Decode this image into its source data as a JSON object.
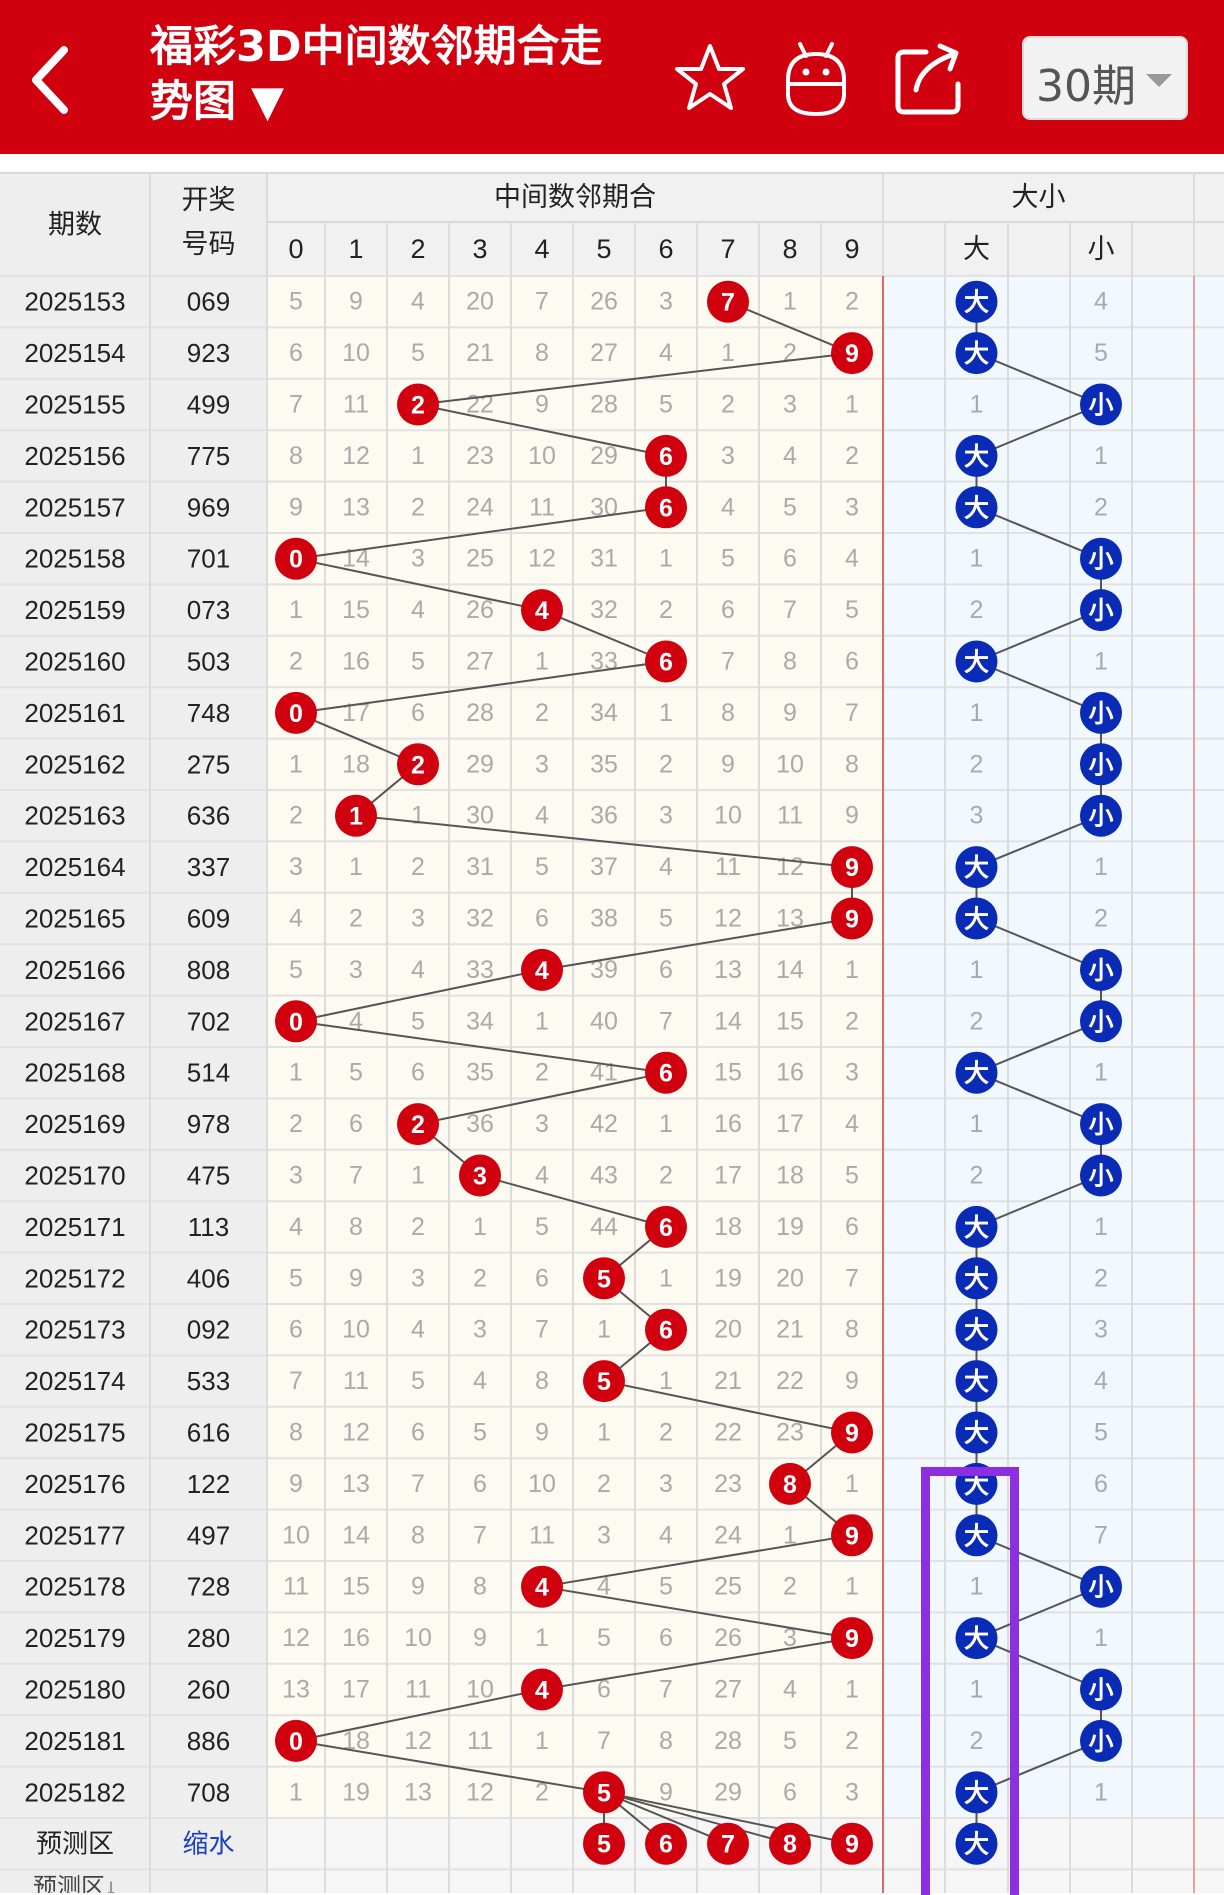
{
  "header": {
    "back_icon": "back-arrow-icon",
    "title_line1": "福彩3D中间数邻期合走",
    "title_line2": "势图 ▼",
    "favorite_icon": "star-icon",
    "robot_icon": "robot-icon",
    "share_icon": "share-icon",
    "period_label": "30期",
    "colors": {
      "bar": "#d0000f",
      "ball_red": "#d0000f",
      "ball_blue": "#0a2bb5",
      "highlight": "#8d2ee0"
    }
  },
  "table": {
    "col_period": "期数",
    "col_draw_line1": "开奖",
    "col_draw_line2": "号码",
    "group_sum": "中间数邻期合",
    "group_size": "大小",
    "digits": [
      "0",
      "1",
      "2",
      "3",
      "4",
      "5",
      "6",
      "7",
      "8",
      "9"
    ],
    "size_big": "大",
    "size_small": "小",
    "rows": [
      {
        "period": "2025153",
        "draw": "069",
        "cells": [
          "5",
          "9",
          "4",
          "20",
          "7",
          "26",
          "3",
          "7",
          "1",
          "2"
        ],
        "hit": 7,
        "size": "大",
        "big": "大",
        "small": "4"
      },
      {
        "period": "2025154",
        "draw": "923",
        "cells": [
          "6",
          "10",
          "5",
          "21",
          "8",
          "27",
          "4",
          "1",
          "2",
          "9"
        ],
        "hit": 9,
        "size": "大",
        "big": "大",
        "small": "5"
      },
      {
        "period": "2025155",
        "draw": "499",
        "cells": [
          "7",
          "11",
          "2",
          "22",
          "9",
          "28",
          "5",
          "2",
          "3",
          "1"
        ],
        "hit": 2,
        "size": "小",
        "big": "1",
        "small": "小"
      },
      {
        "period": "2025156",
        "draw": "775",
        "cells": [
          "8",
          "12",
          "1",
          "23",
          "10",
          "29",
          "6",
          "3",
          "4",
          "2"
        ],
        "hit": 6,
        "size": "大",
        "big": "大",
        "small": "1"
      },
      {
        "period": "2025157",
        "draw": "969",
        "cells": [
          "9",
          "13",
          "2",
          "24",
          "11",
          "30",
          "6",
          "4",
          "5",
          "3"
        ],
        "hit": 6,
        "size": "大",
        "big": "大",
        "small": "2"
      },
      {
        "period": "2025158",
        "draw": "701",
        "cells": [
          "0",
          "14",
          "3",
          "25",
          "12",
          "31",
          "1",
          "5",
          "6",
          "4"
        ],
        "hit": 0,
        "size": "小",
        "big": "1",
        "small": "小"
      },
      {
        "period": "2025159",
        "draw": "073",
        "cells": [
          "1",
          "15",
          "4",
          "26",
          "4",
          "32",
          "2",
          "6",
          "7",
          "5"
        ],
        "hit": 4,
        "size": "小",
        "big": "2",
        "small": "小"
      },
      {
        "period": "2025160",
        "draw": "503",
        "cells": [
          "2",
          "16",
          "5",
          "27",
          "1",
          "33",
          "6",
          "7",
          "8",
          "6"
        ],
        "hit": 6,
        "size": "大",
        "big": "大",
        "small": "1"
      },
      {
        "period": "2025161",
        "draw": "748",
        "cells": [
          "0",
          "17",
          "6",
          "28",
          "2",
          "34",
          "1",
          "8",
          "9",
          "7"
        ],
        "hit": 0,
        "size": "小",
        "big": "1",
        "small": "小"
      },
      {
        "period": "2025162",
        "draw": "275",
        "cells": [
          "1",
          "18",
          "2",
          "29",
          "3",
          "35",
          "2",
          "9",
          "10",
          "8"
        ],
        "hit": 2,
        "size": "小",
        "big": "2",
        "small": "小"
      },
      {
        "period": "2025163",
        "draw": "636",
        "cells": [
          "2",
          "1",
          "1",
          "30",
          "4",
          "36",
          "3",
          "10",
          "11",
          "9"
        ],
        "hit": 1,
        "size": "小",
        "big": "3",
        "small": "小"
      },
      {
        "period": "2025164",
        "draw": "337",
        "cells": [
          "3",
          "1",
          "2",
          "31",
          "5",
          "37",
          "4",
          "11",
          "12",
          "9"
        ],
        "hit": 9,
        "size": "大",
        "big": "大",
        "small": "1"
      },
      {
        "period": "2025165",
        "draw": "609",
        "cells": [
          "4",
          "2",
          "3",
          "32",
          "6",
          "38",
          "5",
          "12",
          "13",
          "9"
        ],
        "hit": 9,
        "size": "大",
        "big": "大",
        "small": "2"
      },
      {
        "period": "2025166",
        "draw": "808",
        "cells": [
          "5",
          "3",
          "4",
          "33",
          "4",
          "39",
          "6",
          "13",
          "14",
          "1"
        ],
        "hit": 4,
        "size": "小",
        "big": "1",
        "small": "小"
      },
      {
        "period": "2025167",
        "draw": "702",
        "cells": [
          "0",
          "4",
          "5",
          "34",
          "1",
          "40",
          "7",
          "14",
          "15",
          "2"
        ],
        "hit": 0,
        "size": "小",
        "big": "2",
        "small": "小"
      },
      {
        "period": "2025168",
        "draw": "514",
        "cells": [
          "1",
          "5",
          "6",
          "35",
          "2",
          "41",
          "6",
          "15",
          "16",
          "3"
        ],
        "hit": 6,
        "size": "大",
        "big": "大",
        "small": "1"
      },
      {
        "period": "2025169",
        "draw": "978",
        "cells": [
          "2",
          "6",
          "2",
          "36",
          "3",
          "42",
          "1",
          "16",
          "17",
          "4"
        ],
        "hit": 2,
        "size": "小",
        "big": "1",
        "small": "小"
      },
      {
        "period": "2025170",
        "draw": "475",
        "cells": [
          "3",
          "7",
          "1",
          "3",
          "4",
          "43",
          "2",
          "17",
          "18",
          "5"
        ],
        "hit": 3,
        "size": "小",
        "big": "2",
        "small": "小"
      },
      {
        "period": "2025171",
        "draw": "113",
        "cells": [
          "4",
          "8",
          "2",
          "1",
          "5",
          "44",
          "6",
          "18",
          "19",
          "6"
        ],
        "hit": 6,
        "size": "大",
        "big": "大",
        "small": "1"
      },
      {
        "period": "2025172",
        "draw": "406",
        "cells": [
          "5",
          "9",
          "3",
          "2",
          "6",
          "5",
          "1",
          "19",
          "20",
          "7"
        ],
        "hit": 5,
        "size": "大",
        "big": "大",
        "small": "2"
      },
      {
        "period": "2025173",
        "draw": "092",
        "cells": [
          "6",
          "10",
          "4",
          "3",
          "7",
          "1",
          "6",
          "20",
          "21",
          "8"
        ],
        "hit": 6,
        "size": "大",
        "big": "大",
        "small": "3"
      },
      {
        "period": "2025174",
        "draw": "533",
        "cells": [
          "7",
          "11",
          "5",
          "4",
          "8",
          "5",
          "1",
          "21",
          "22",
          "9"
        ],
        "hit": 5,
        "size": "大",
        "big": "大",
        "small": "4"
      },
      {
        "period": "2025175",
        "draw": "616",
        "cells": [
          "8",
          "12",
          "6",
          "5",
          "9",
          "1",
          "2",
          "22",
          "23",
          "9"
        ],
        "hit": 9,
        "size": "大",
        "big": "大",
        "small": "5"
      },
      {
        "period": "2025176",
        "draw": "122",
        "cells": [
          "9",
          "13",
          "7",
          "6",
          "10",
          "2",
          "3",
          "23",
          "8",
          "1"
        ],
        "hit": 8,
        "size": "大",
        "big": "大",
        "small": "6"
      },
      {
        "period": "2025177",
        "draw": "497",
        "cells": [
          "10",
          "14",
          "8",
          "7",
          "11",
          "3",
          "4",
          "24",
          "1",
          "9"
        ],
        "hit": 9,
        "size": "大",
        "big": "大",
        "small": "7"
      },
      {
        "period": "2025178",
        "draw": "728",
        "cells": [
          "11",
          "15",
          "9",
          "8",
          "4",
          "4",
          "5",
          "25",
          "2",
          "1"
        ],
        "hit": 4,
        "size": "小",
        "big": "1",
        "small": "小"
      },
      {
        "period": "2025179",
        "draw": "280",
        "cells": [
          "12",
          "16",
          "10",
          "9",
          "1",
          "5",
          "6",
          "26",
          "3",
          "9"
        ],
        "hit": 9,
        "size": "大",
        "big": "大",
        "small": "1"
      },
      {
        "period": "2025180",
        "draw": "260",
        "cells": [
          "13",
          "17",
          "11",
          "10",
          "4",
          "6",
          "7",
          "27",
          "4",
          "1"
        ],
        "hit": 4,
        "size": "小",
        "big": "1",
        "small": "小"
      },
      {
        "period": "2025181",
        "draw": "886",
        "cells": [
          "0",
          "18",
          "12",
          "11",
          "1",
          "7",
          "8",
          "28",
          "5",
          "2"
        ],
        "hit": 0,
        "size": "小",
        "big": "2",
        "small": "小"
      },
      {
        "period": "2025182",
        "draw": "708",
        "cells": [
          "1",
          "19",
          "13",
          "12",
          "2",
          "5",
          "9",
          "29",
          "6",
          "3"
        ],
        "hit": 5,
        "size": "大",
        "big": "大",
        "small": "1"
      }
    ],
    "predict_label": "预测区",
    "predict_shrink": "缩水",
    "predict_balls": [
      "5",
      "6",
      "7",
      "8",
      "9"
    ],
    "predict_size": "大",
    "predict_next_label": "预测区↓"
  }
}
